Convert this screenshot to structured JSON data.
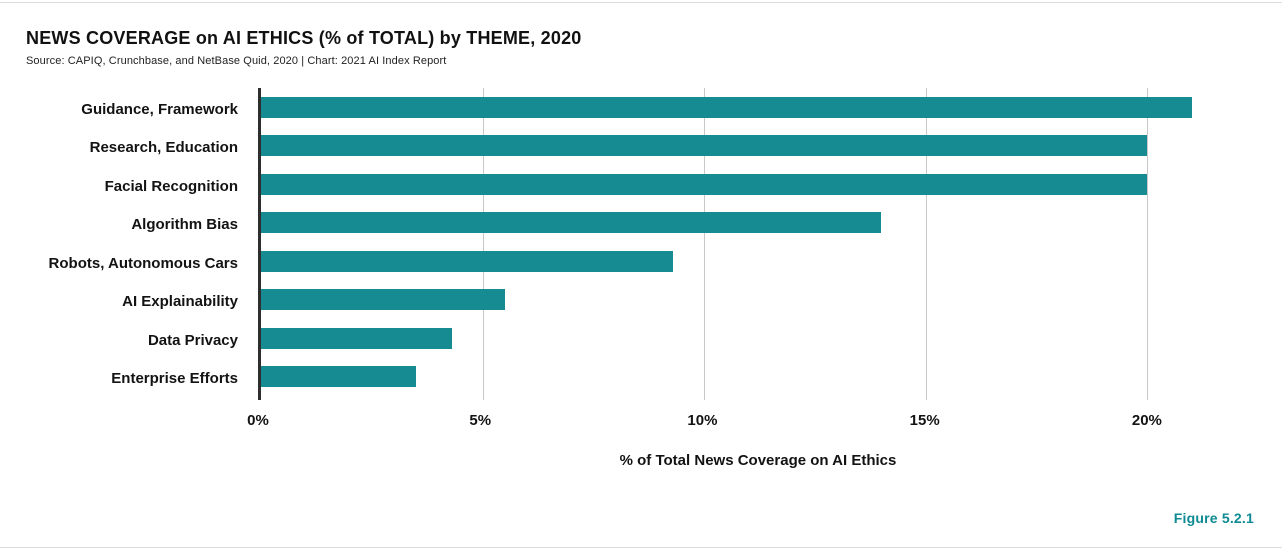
{
  "header": {
    "title": "NEWS COVERAGE on AI ETHICS (% of TOTAL) by THEME, 2020",
    "source": "Source: CAPIQ, Crunchbase, and NetBase Quid, 2020 | Chart: 2021 AI Index Report"
  },
  "figure_label": "Figure 5.2.1",
  "colors": {
    "bar": "#178b92",
    "axis": "#2e2e2e",
    "gridline": "#c8c8c8",
    "figure_label": "#0e8a93",
    "text": "#131313"
  },
  "chart_data": {
    "type": "bar",
    "orientation": "horizontal",
    "title": "NEWS COVERAGE on AI ETHICS (% of TOTAL) by THEME, 2020",
    "categories": [
      "Guidance, Framework",
      "Research, Education",
      "Facial Recognition",
      "Algorithm Bias",
      "Robots, Autonomous Cars",
      "AI Explainability",
      "Data Privacy",
      "Enterprise Efforts"
    ],
    "values": [
      21,
      20,
      20,
      14,
      9.3,
      5.5,
      4.3,
      3.5
    ],
    "xlabel": "% of Total News Coverage on AI Ethics",
    "ylabel": "",
    "xticks": [
      0,
      5,
      10,
      15,
      20
    ],
    "xtick_labels": [
      "0%",
      "5%",
      "10%",
      "15%",
      "20%"
    ],
    "xlim": [
      0,
      22.5
    ],
    "grid": true,
    "legend": false
  }
}
